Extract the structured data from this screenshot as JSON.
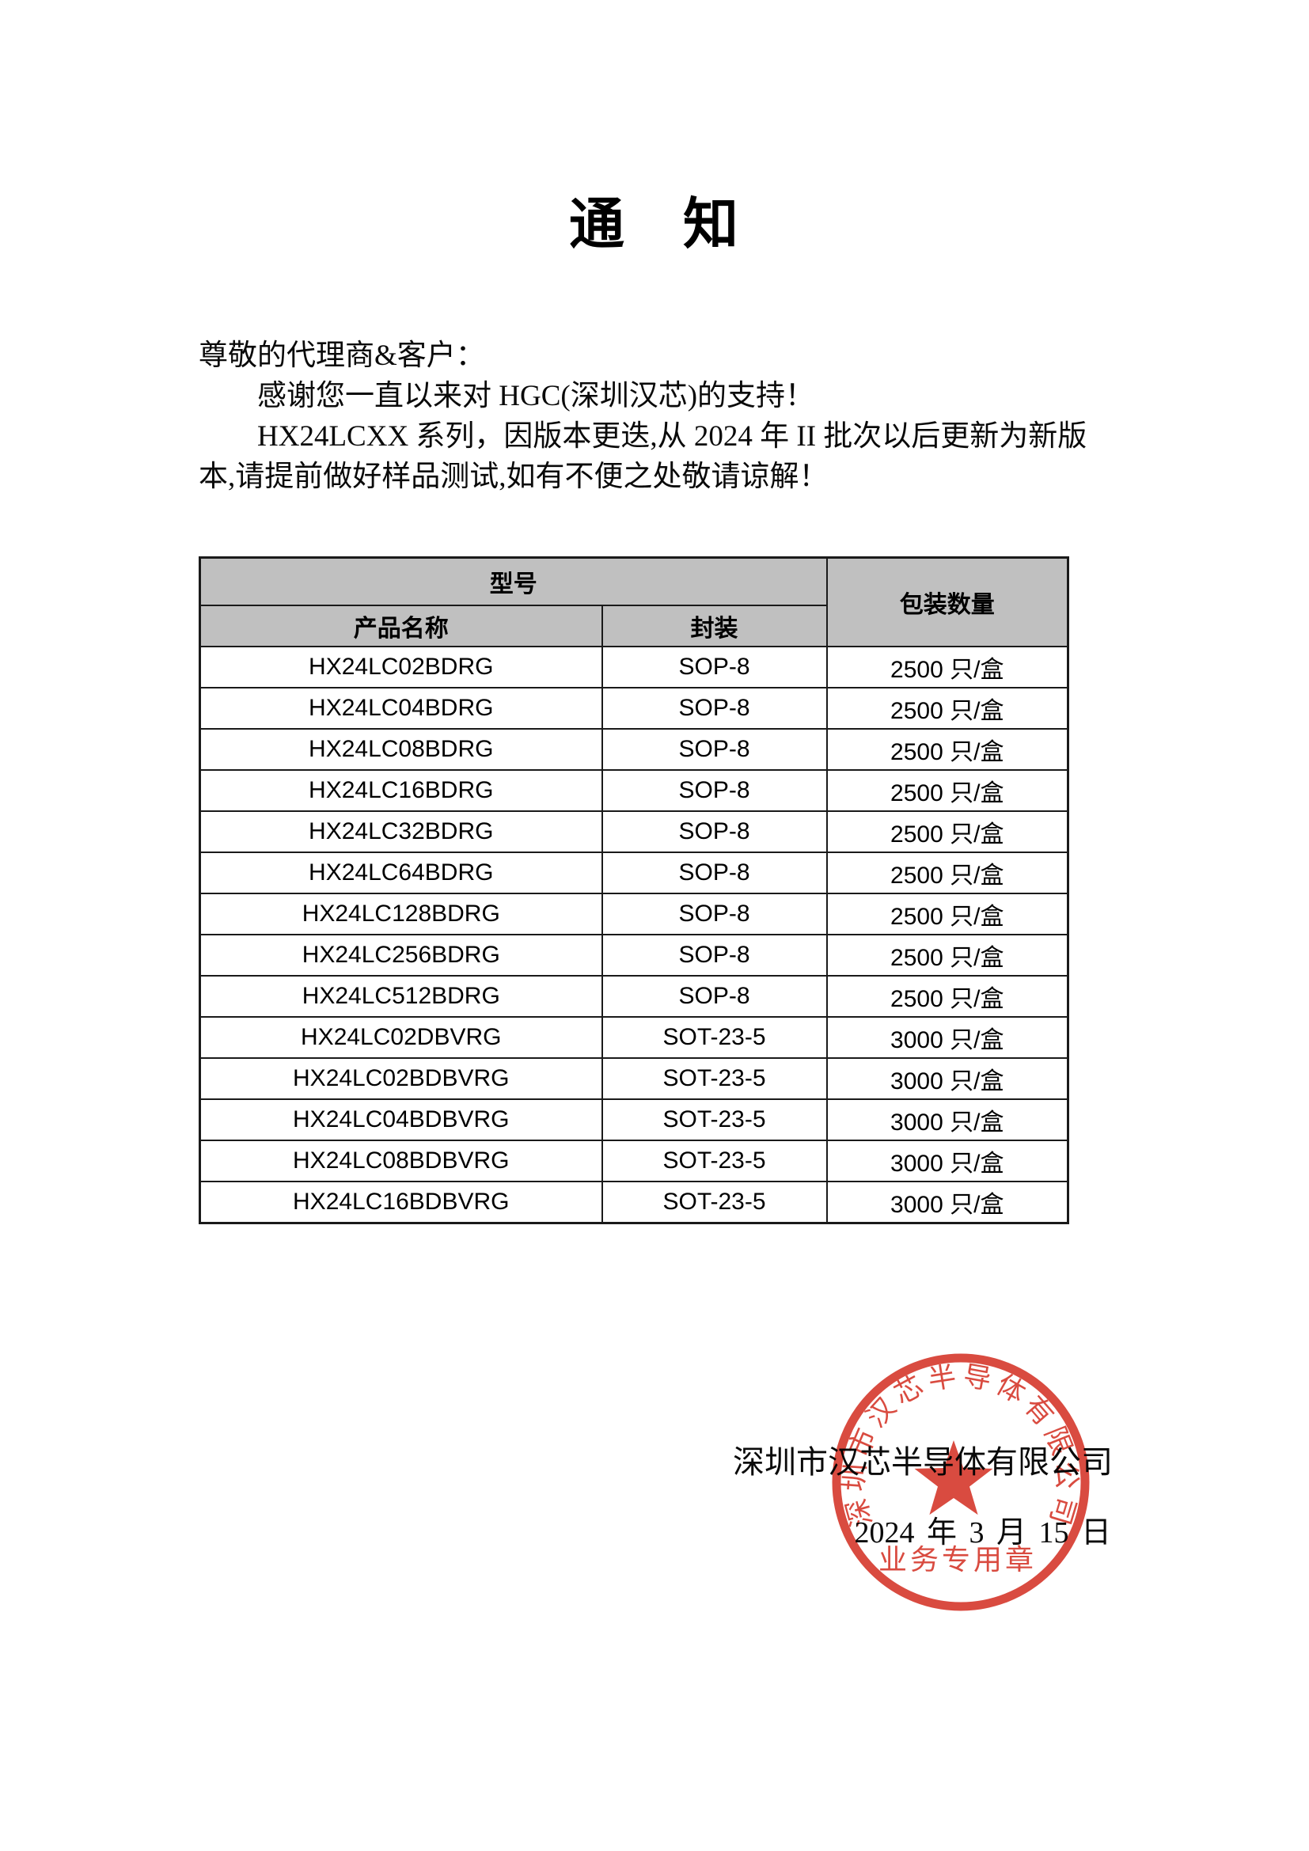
{
  "document": {
    "title": "通　知",
    "paragraph": {
      "salutation": "尊敬的代理商&客户：",
      "line2": "感谢您一直以来对 HGC(深圳汉芯)的支持！",
      "line3": "HX24LCXX 系列，因版本更迭,从 2024 年 II 批次以后更新为新版",
      "line4": "本,请提前做好样品测试,如有不便之处敬请谅解！"
    }
  },
  "table": {
    "header": {
      "model_group": "型号",
      "product_name": "产品名称",
      "package": "封装",
      "packing_qty": "包装数量"
    },
    "rows": [
      {
        "name": "HX24LC02BDRG",
        "package": "SOP-8",
        "qty": "2500 只/盒"
      },
      {
        "name": "HX24LC04BDRG",
        "package": "SOP-8",
        "qty": "2500 只/盒"
      },
      {
        "name": "HX24LC08BDRG",
        "package": "SOP-8",
        "qty": "2500 只/盒"
      },
      {
        "name": "HX24LC16BDRG",
        "package": "SOP-8",
        "qty": "2500 只/盒"
      },
      {
        "name": "HX24LC32BDRG",
        "package": "SOP-8",
        "qty": "2500 只/盒"
      },
      {
        "name": "HX24LC64BDRG",
        "package": "SOP-8",
        "qty": "2500 只/盒"
      },
      {
        "name": "HX24LC128BDRG",
        "package": "SOP-8",
        "qty": "2500 只/盒"
      },
      {
        "name": "HX24LC256BDRG",
        "package": "SOP-8",
        "qty": "2500 只/盒"
      },
      {
        "name": "HX24LC512BDRG",
        "package": "SOP-8",
        "qty": "2500 只/盒"
      },
      {
        "name": "HX24LC02DBVRG",
        "package": "SOT-23-5",
        "qty": "3000 只/盒"
      },
      {
        "name": "HX24LC02BDBVRG",
        "package": "SOT-23-5",
        "qty": "3000 只/盒"
      },
      {
        "name": "HX24LC04BDBVRG",
        "package": "SOT-23-5",
        "qty": "3000 只/盒"
      },
      {
        "name": "HX24LC08BDBVRG",
        "package": "SOT-23-5",
        "qty": "3000 只/盒"
      },
      {
        "name": "HX24LC16BDBVRG",
        "package": "SOT-23-5",
        "qty": "3000 只/盒"
      }
    ]
  },
  "signature": {
    "company": "深圳市汉芯半导体有限公司",
    "date": "2024 年 3 月 15 日"
  },
  "stamp": {
    "ring_text": "深圳市汉芯半导体有限公司",
    "bottom_text": "业务专用章",
    "color": "#d5372b"
  },
  "colors": {
    "table_header_bg": "#c0c0c0",
    "stamp_red": "#d5372b",
    "text": "#0a0a0a"
  }
}
